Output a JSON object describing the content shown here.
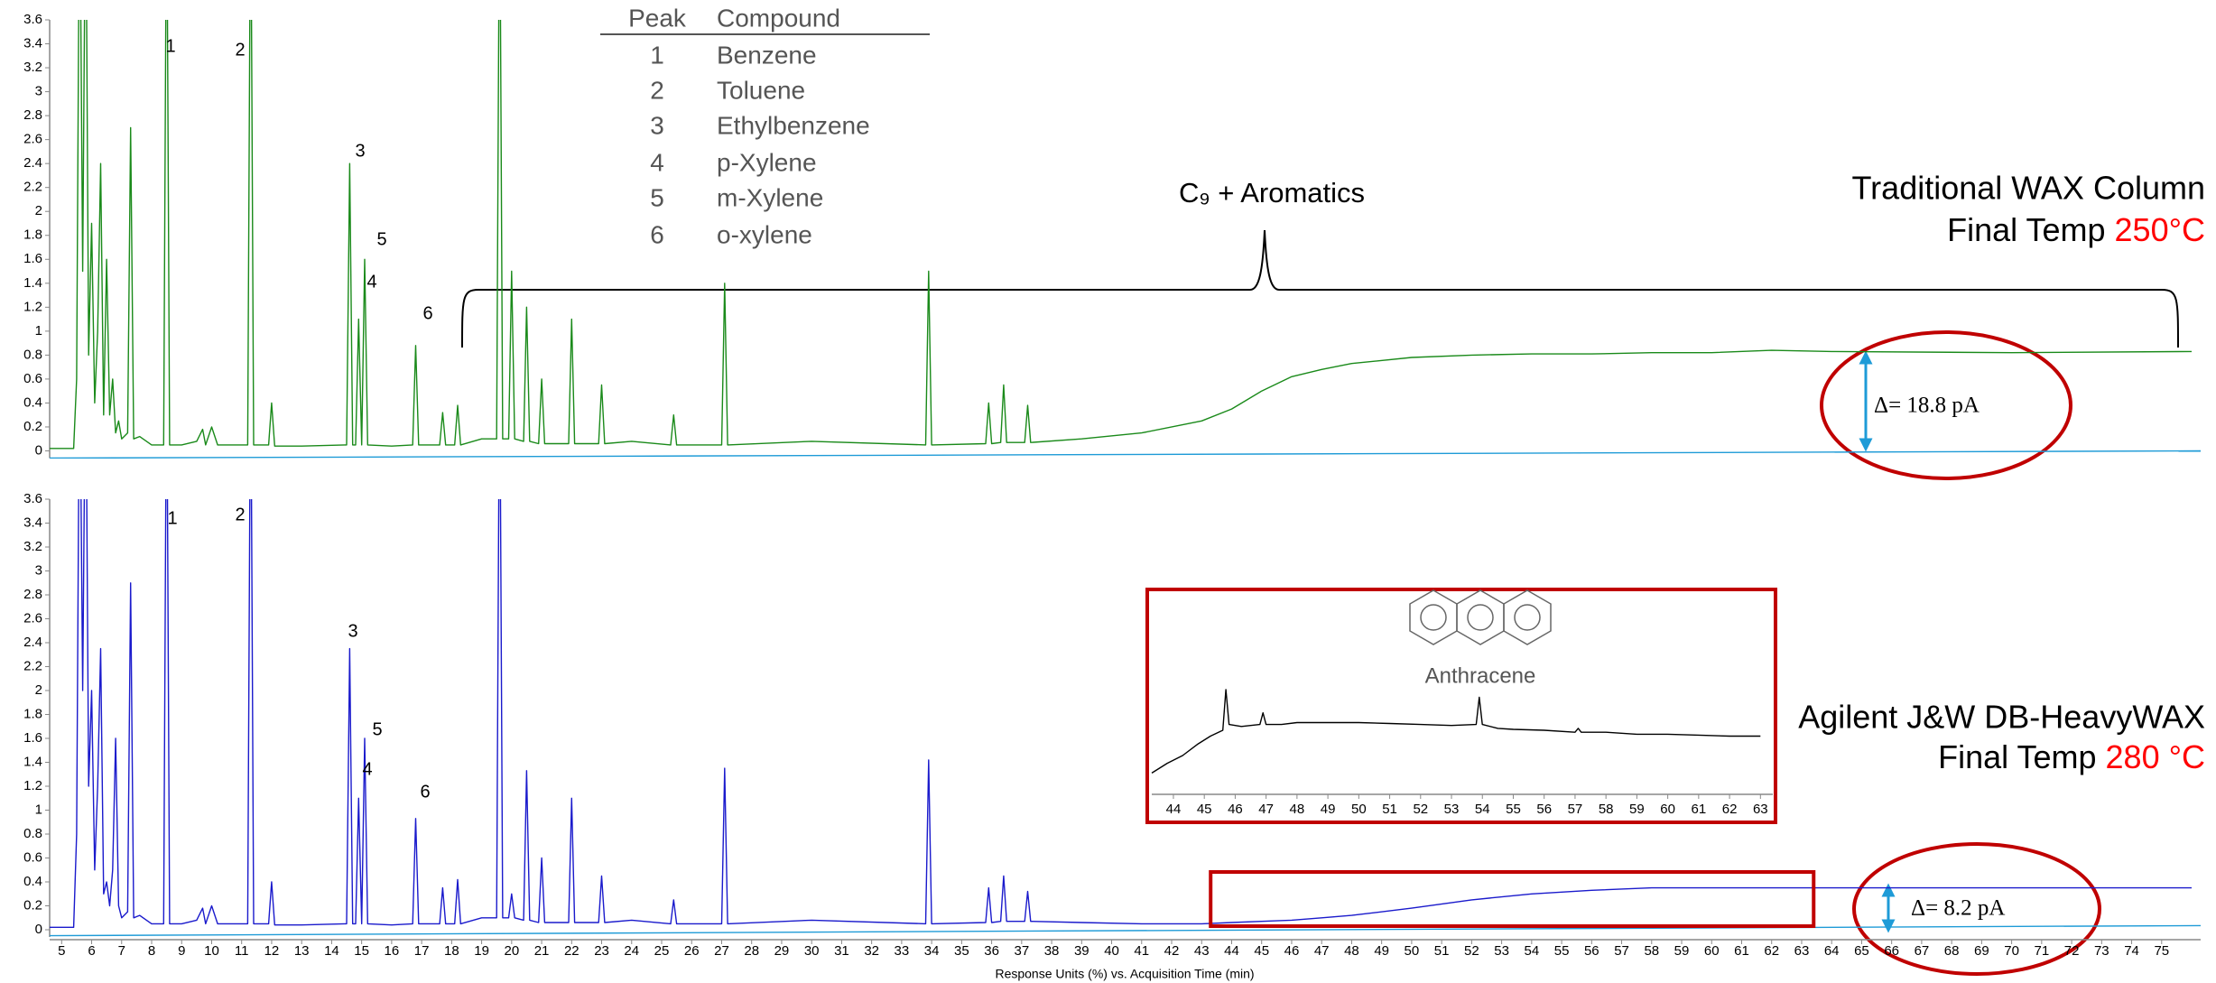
{
  "peak_table": {
    "columns": [
      "Peak",
      "Compound"
    ],
    "rows": [
      [
        "1",
        "Benzene"
      ],
      [
        "2",
        "Toluene"
      ],
      [
        "3",
        "Ethylbenzene"
      ],
      [
        "4",
        "p-Xylene"
      ],
      [
        "5",
        "m-Xylene"
      ],
      [
        "6",
        "o-xylene"
      ]
    ]
  },
  "chart_data": [
    {
      "type": "line",
      "title": "Traditional WAX Column",
      "subtitle": "Final Temp",
      "temperature": "250°C",
      "temperature_color": "#ff0000",
      "annotation": "C₉ + Aromatics",
      "delta_label": "Δ= 18.8 pA",
      "peak_labels": [
        "1",
        "2",
        "3",
        "4",
        "5",
        "6"
      ],
      "xlim": [
        4.6,
        76.3
      ],
      "ylim": [
        0,
        3.6
      ],
      "yticks": [
        0,
        0.2,
        0.4,
        0.6,
        0.8,
        1,
        1.2,
        1.4,
        1.6,
        1.8,
        2,
        2.2,
        2.4,
        2.6,
        2.8,
        3,
        3.2,
        3.4,
        3.6
      ],
      "series": [
        {
          "color": "#1a8a1a",
          "x": [
            4.6,
            5.4,
            5.5,
            5.6,
            5.7,
            5.8,
            5.9,
            6.0,
            6.1,
            6.2,
            6.3,
            6.4,
            6.5,
            6.6,
            6.7,
            6.8,
            6.9,
            7.0,
            7.2,
            7.3,
            7.4,
            7.6,
            8.0,
            8.4,
            8.5,
            8.6,
            9.0,
            9.5,
            9.7,
            9.8,
            10.0,
            10.2,
            10.4,
            11.2,
            11.3,
            11.4,
            11.9,
            12.0,
            12.1,
            13.0,
            14.5,
            14.6,
            14.7,
            14.8,
            14.9,
            15.0,
            15.1,
            15.2,
            16.0,
            16.7,
            16.8,
            16.9,
            17.6,
            17.7,
            17.8,
            18.1,
            18.2,
            18.3,
            19.0,
            19.5,
            19.6,
            19.7,
            19.9,
            20.0,
            20.1,
            20.4,
            20.5,
            20.6,
            20.9,
            21.0,
            21.1,
            21.9,
            22.0,
            22.1,
            22.9,
            23.0,
            23.1,
            24.0,
            25.3,
            25.4,
            25.5,
            27.0,
            27.1,
            27.2,
            30.0,
            33.8,
            33.9,
            34.0,
            35.8,
            35.9,
            36.0,
            36.3,
            36.4,
            36.5,
            37.1,
            37.2,
            37.3,
            39.0,
            41.0,
            43.0,
            44.0,
            45.0,
            46.0,
            47.0,
            48.0,
            50.0,
            52.0,
            54.0,
            56.0,
            58.0,
            60.0,
            62.0,
            64.0,
            70.0,
            76.0
          ],
          "values": [
            0.02,
            0.02,
            0.6,
            5,
            1.5,
            5,
            0.8,
            1.9,
            0.4,
            1.0,
            2.4,
            0.3,
            1.6,
            0.3,
            0.6,
            0.15,
            0.25,
            0.1,
            0.15,
            2.7,
            0.1,
            0.12,
            0.05,
            0.05,
            5,
            0.05,
            0.05,
            0.08,
            0.18,
            0.05,
            0.2,
            0.05,
            0.05,
            0.05,
            5,
            0.05,
            0.05,
            0.4,
            0.04,
            0.04,
            0.05,
            2.4,
            0.05,
            0.05,
            1.1,
            0.05,
            1.6,
            0.05,
            0.04,
            0.05,
            0.88,
            0.05,
            0.05,
            0.32,
            0.05,
            0.05,
            0.38,
            0.05,
            0.1,
            0.1,
            5,
            0.1,
            0.1,
            1.5,
            0.1,
            0.08,
            1.2,
            0.08,
            0.06,
            0.6,
            0.06,
            0.06,
            1.1,
            0.06,
            0.06,
            0.55,
            0.06,
            0.08,
            0.05,
            0.3,
            0.05,
            0.05,
            1.4,
            0.05,
            0.08,
            0.05,
            1.5,
            0.05,
            0.06,
            0.4,
            0.06,
            0.07,
            0.55,
            0.07,
            0.07,
            0.38,
            0.07,
            0.1,
            0.15,
            0.25,
            0.35,
            0.5,
            0.62,
            0.68,
            0.73,
            0.78,
            0.8,
            0.81,
            0.81,
            0.82,
            0.82,
            0.84,
            0.83,
            0.82,
            0.83
          ]
        },
        {
          "color": "#1e9bd7",
          "x": [
            4.6,
            76.3
          ],
          "values": [
            -0.06,
            0.0
          ]
        }
      ]
    },
    {
      "type": "line",
      "title": "Agilent J&W DB-HeavyWAX",
      "subtitle": "Final Temp",
      "temperature": "280 °C",
      "temperature_color": "#ff0000",
      "delta_label": "Δ= 8.2 pA",
      "peak_labels": [
        "1",
        "2",
        "3",
        "4",
        "5",
        "6"
      ],
      "xlabel": "Response Units (%) vs. Acquisition Time (min)",
      "xlim": [
        4.6,
        76.3
      ],
      "ylim": [
        0,
        3.6
      ],
      "xticks": [
        5,
        6,
        7,
        8,
        9,
        10,
        11,
        12,
        13,
        14,
        15,
        16,
        17,
        18,
        19,
        20,
        21,
        22,
        23,
        24,
        25,
        26,
        27,
        28,
        29,
        30,
        31,
        32,
        33,
        34,
        35,
        36,
        37,
        38,
        39,
        40,
        41,
        42,
        43,
        44,
        45,
        46,
        47,
        48,
        49,
        50,
        51,
        52,
        53,
        54,
        55,
        56,
        57,
        58,
        59,
        60,
        61,
        62,
        63,
        64,
        65,
        66,
        67,
        68,
        69,
        70,
        71,
        72,
        73,
        74,
        75
      ],
      "yticks": [
        0,
        0.2,
        0.4,
        0.6,
        0.8,
        1,
        1.2,
        1.4,
        1.6,
        1.8,
        2,
        2.2,
        2.4,
        2.6,
        2.8,
        3,
        3.2,
        3.4,
        3.6
      ],
      "series": [
        {
          "color": "#1a1acc",
          "x": [
            4.6,
            5.4,
            5.5,
            5.6,
            5.7,
            5.8,
            5.9,
            6.0,
            6.1,
            6.2,
            6.3,
            6.4,
            6.5,
            6.6,
            6.7,
            6.8,
            6.9,
            7.0,
            7.2,
            7.3,
            7.4,
            7.6,
            8.0,
            8.4,
            8.5,
            8.6,
            9.0,
            9.5,
            9.7,
            9.8,
            10.0,
            10.2,
            10.4,
            11.2,
            11.3,
            11.4,
            11.9,
            12.0,
            12.1,
            13.0,
            14.5,
            14.6,
            14.7,
            14.8,
            14.9,
            15.0,
            15.1,
            15.2,
            16.0,
            16.7,
            16.8,
            16.9,
            17.6,
            17.7,
            17.8,
            18.1,
            18.2,
            18.3,
            19.0,
            19.5,
            19.6,
            19.7,
            19.9,
            20.0,
            20.1,
            20.4,
            20.5,
            20.6,
            20.9,
            21.0,
            21.1,
            21.9,
            22.0,
            22.1,
            22.9,
            23.0,
            23.1,
            24.0,
            25.3,
            25.4,
            25.5,
            27.0,
            27.1,
            27.2,
            30.0,
            33.8,
            33.9,
            34.0,
            35.8,
            35.9,
            36.0,
            36.3,
            36.4,
            36.5,
            37.1,
            37.2,
            37.3,
            39.0,
            41.0,
            43.0,
            44.0,
            45.0,
            46.0,
            47.0,
            48.0,
            50.0,
            52.0,
            54.0,
            56.0,
            58.0,
            60.0,
            62.0,
            64.0,
            70.0,
            76.0
          ],
          "values": [
            0.02,
            0.02,
            0.8,
            5,
            2,
            5,
            1.2,
            2.0,
            0.5,
            1.2,
            2.35,
            0.3,
            0.4,
            0.2,
            0.5,
            1.6,
            0.2,
            0.1,
            0.15,
            2.9,
            0.1,
            0.12,
            0.05,
            0.05,
            5,
            0.05,
            0.05,
            0.08,
            0.18,
            0.05,
            0.2,
            0.05,
            0.05,
            0.05,
            5,
            0.05,
            0.05,
            0.4,
            0.04,
            0.04,
            0.05,
            2.35,
            0.05,
            0.05,
            1.1,
            0.05,
            1.6,
            0.05,
            0.04,
            0.05,
            0.93,
            0.05,
            0.05,
            0.35,
            0.05,
            0.05,
            0.42,
            0.05,
            0.1,
            0.1,
            5,
            0.1,
            0.1,
            0.3,
            0.1,
            0.08,
            1.33,
            0.08,
            0.06,
            0.6,
            0.06,
            0.06,
            1.1,
            0.06,
            0.06,
            0.45,
            0.06,
            0.08,
            0.05,
            0.25,
            0.05,
            0.05,
            1.35,
            0.05,
            0.08,
            0.05,
            1.42,
            0.05,
            0.06,
            0.35,
            0.06,
            0.07,
            0.45,
            0.07,
            0.07,
            0.32,
            0.07,
            0.06,
            0.05,
            0.05,
            0.06,
            0.07,
            0.08,
            0.1,
            0.12,
            0.18,
            0.25,
            0.3,
            0.33,
            0.35,
            0.35,
            0.35,
            0.35,
            0.35,
            0.35
          ]
        },
        {
          "color": "#1e9bd7",
          "x": [
            4.6,
            76.3
          ],
          "values": [
            -0.05,
            0.035
          ]
        }
      ]
    },
    {
      "type": "line",
      "annotation": "Anthracene",
      "xlim": [
        43.3,
        63.4
      ],
      "ylim": [
        0,
        100
      ],
      "xticks": [
        44,
        45,
        46,
        47,
        48,
        49,
        50,
        51,
        52,
        53,
        54,
        55,
        56,
        57,
        58,
        59,
        60,
        61,
        62,
        63
      ],
      "series": [
        {
          "color": "#000000",
          "x": [
            43.3,
            43.8,
            44.3,
            44.8,
            45.2,
            45.6,
            45.7,
            45.8,
            46.2,
            46.8,
            46.9,
            47.0,
            47.5,
            48.0,
            49.0,
            50.0,
            51.0,
            52.0,
            53.0,
            53.8,
            53.9,
            54.0,
            54.5,
            55.0,
            56.0,
            57.0,
            57.1,
            57.2,
            58.0,
            59.0,
            60.0,
            61.0,
            62.0,
            63.0
          ],
          "values": [
            11,
            16,
            20,
            26,
            30,
            33,
            54,
            36,
            35,
            36,
            42,
            36,
            36,
            37,
            37,
            37,
            36.5,
            36,
            35.5,
            36,
            50,
            36,
            34,
            33.5,
            33,
            32,
            34,
            32,
            32,
            31,
            31,
            30.5,
            30,
            30
          ]
        }
      ]
    }
  ]
}
